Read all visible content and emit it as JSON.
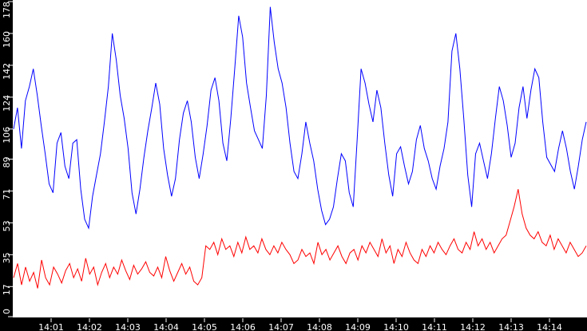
{
  "chart_data": {
    "type": "line",
    "title": "",
    "xlabel": "",
    "ylabel": "",
    "ylim": [
      0,
      178
    ],
    "y_ticks": [
      "0",
      "17",
      "35",
      "53",
      "71",
      "89",
      "106",
      "124",
      "142",
      "160",
      "178"
    ],
    "x_ticks": [
      "14:01",
      "14:02",
      "14:03",
      "14:04",
      "14:05",
      "14:06",
      "14:07",
      "14:08",
      "14:09",
      "14:10",
      "14:11",
      "14:12",
      "14:13",
      "14:14"
    ],
    "x_range": [
      "14:00",
      "14:15"
    ],
    "grid": false,
    "legend": null,
    "background": "#ffffff",
    "axis_background": "#000000",
    "series": [
      {
        "name": "blue",
        "color": "#0000ff",
        "values": [
          106,
          118,
          95,
          122,
          130,
          140,
          125,
          108,
          92,
          75,
          70,
          98,
          104,
          85,
          78,
          98,
          100,
          72,
          55,
          50,
          68,
          80,
          92,
          110,
          130,
          160,
          145,
          125,
          112,
          95,
          70,
          58,
          72,
          90,
          105,
          118,
          132,
          120,
          95,
          80,
          68,
          78,
          100,
          115,
          122,
          110,
          90,
          78,
          92,
          108,
          128,
          135,
          122,
          98,
          88,
          112,
          140,
          170,
          158,
          132,
          118,
          105,
          100,
          95,
          125,
          175,
          155,
          140,
          132,
          118,
          98,
          82,
          78,
          92,
          110,
          98,
          88,
          72,
          60,
          52,
          55,
          62,
          78,
          92,
          88,
          70,
          62,
          100,
          140,
          132,
          120,
          110,
          128,
          118,
          98,
          80,
          68,
          92,
          96,
          85,
          75,
          82,
          100,
          108,
          95,
          88,
          78,
          72,
          85,
          95,
          110,
          150,
          160,
          140,
          112,
          80,
          62,
          92,
          98,
          88,
          78,
          92,
          112,
          130,
          122,
          108,
          90,
          98,
          118,
          130,
          112,
          128,
          140,
          135,
          110,
          90,
          86,
          82,
          95,
          105,
          95,
          82,
          72,
          85,
          100,
          110
        ]
      },
      {
        "name": "red",
        "color": "#ff0000",
        "values": [
          22,
          30,
          18,
          28,
          20,
          25,
          16,
          32,
          22,
          18,
          28,
          24,
          19,
          26,
          30,
          22,
          27,
          20,
          33,
          24,
          28,
          18,
          25,
          30,
          22,
          28,
          24,
          32,
          26,
          21,
          29,
          24,
          27,
          31,
          25,
          23,
          28,
          22,
          34,
          26,
          20,
          25,
          30,
          24,
          28,
          20,
          18,
          22,
          40,
          38,
          42,
          35,
          44,
          38,
          40,
          34,
          42,
          36,
          45,
          38,
          40,
          36,
          44,
          38,
          35,
          40,
          36,
          42,
          38,
          35,
          30,
          32,
          38,
          34,
          36,
          30,
          42,
          35,
          38,
          32,
          36,
          40,
          34,
          30,
          36,
          38,
          32,
          40,
          36,
          42,
          38,
          34,
          44,
          36,
          40,
          30,
          38,
          34,
          42,
          36,
          32,
          30,
          38,
          34,
          40,
          36,
          42,
          38,
          35,
          40,
          44,
          38,
          36,
          42,
          38,
          48,
          40,
          44,
          38,
          42,
          36,
          40,
          44,
          46,
          54,
          62,
          72,
          58,
          50,
          46,
          44,
          48,
          42,
          40,
          46,
          38,
          44,
          40,
          36,
          42,
          38,
          34,
          36,
          40
        ]
      }
    ]
  }
}
